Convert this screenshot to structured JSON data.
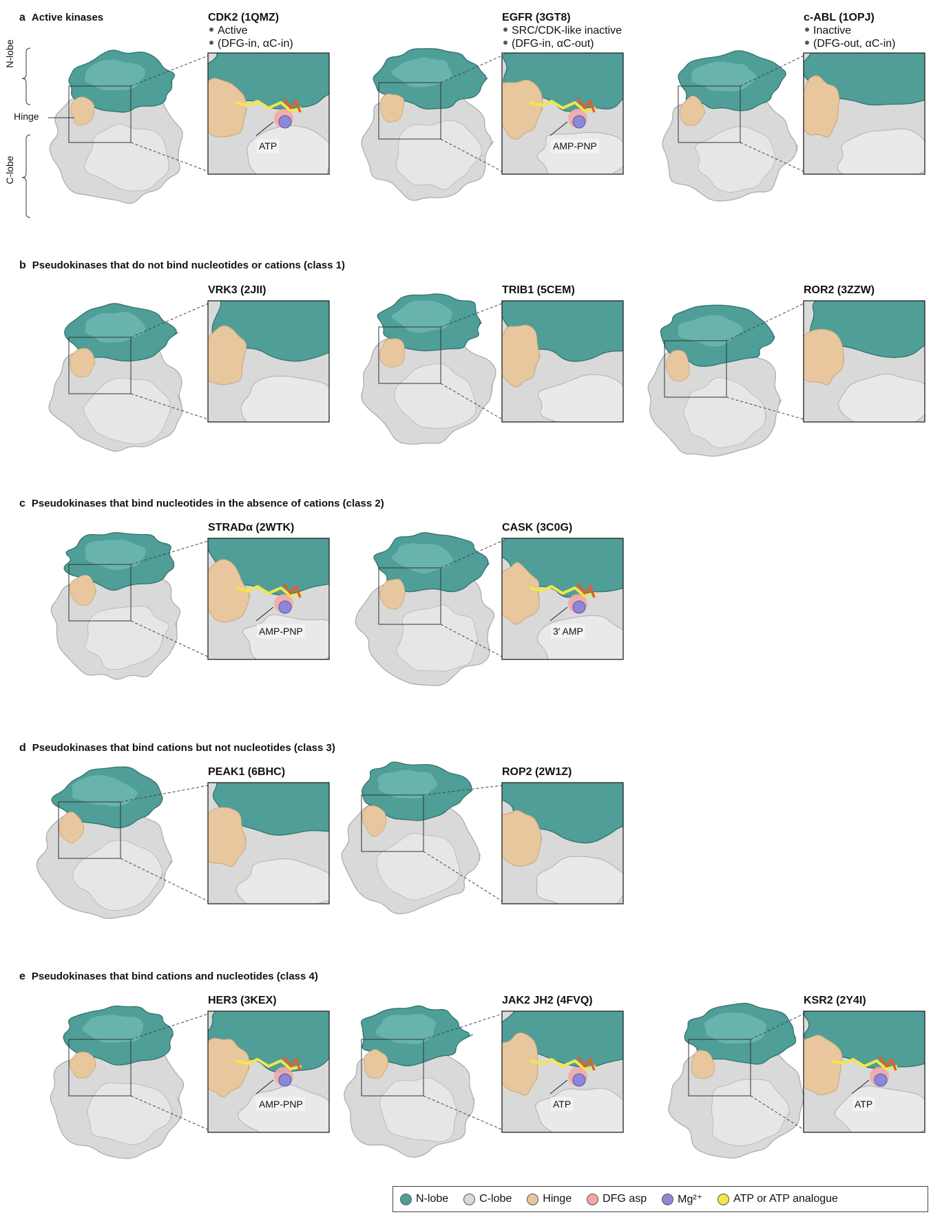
{
  "colors": {
    "n_lobe": "#4f9e98",
    "c_lobe": "#d9d9d9",
    "hinge": "#e8c79e",
    "dfg_asp": "#f2a7a7",
    "mg": "#8c87d6",
    "atp": "#f2e64a"
  },
  "side_labels": {
    "n_lobe": "N-lobe",
    "hinge": "Hinge",
    "c_lobe": "C-lobe"
  },
  "sections": [
    {
      "letter": "a",
      "title": "Active kinases",
      "kinases": [
        {
          "title": "CDK2 (1QMZ)",
          "lines": [
            "Active",
            "(DFG-in, αC-in)"
          ],
          "ligand": "ATP"
        },
        {
          "title": "EGFR (3GT8)",
          "lines": [
            "SRC/CDK-like inactive",
            "(DFG-in, αC-out)"
          ],
          "ligand": "AMP-PNP"
        },
        {
          "title": "c-ABL (1OPJ)",
          "lines": [
            "Inactive",
            "(DFG-out, αC-in)"
          ],
          "ligand": ""
        }
      ]
    },
    {
      "letter": "b",
      "title": "Pseudokinases that do not bind nucleotides or cations (class 1)",
      "kinases": [
        {
          "title": "VRK3 (2JII)",
          "lines": [],
          "ligand": ""
        },
        {
          "title": "TRIB1 (5CEM)",
          "lines": [],
          "ligand": ""
        },
        {
          "title": "ROR2 (3ZZW)",
          "lines": [],
          "ligand": ""
        }
      ]
    },
    {
      "letter": "c",
      "title": "Pseudokinases that bind nucleotides in the absence of cations (class 2)",
      "kinases": [
        {
          "title": "STRADα (2WTK)",
          "lines": [],
          "ligand": "AMP-PNP"
        },
        {
          "title": "CASK (3C0G)",
          "lines": [],
          "ligand": "3′ AMP"
        }
      ]
    },
    {
      "letter": "d",
      "title": "Pseudokinases that bind cations but not nucleotides (class 3)",
      "kinases": [
        {
          "title": "PEAK1 (6BHC)",
          "lines": [],
          "ligand": ""
        },
        {
          "title": "ROP2 (2W1Z)",
          "lines": [],
          "ligand": ""
        }
      ]
    },
    {
      "letter": "e",
      "title": "Pseudokinases that bind cations and nucleotides (class 4)",
      "kinases": [
        {
          "title": "HER3 (3KEX)",
          "lines": [],
          "ligand": "AMP-PNP"
        },
        {
          "title": "JAK2 JH2 (4FVQ)",
          "lines": [],
          "ligand": "ATP"
        },
        {
          "title": "KSR2 (2Y4I)",
          "lines": [],
          "ligand": "ATP"
        }
      ]
    }
  ],
  "legend": [
    {
      "label": "N-lobe",
      "color": "#4f9e98"
    },
    {
      "label": "C-lobe",
      "color": "#d9d9d9"
    },
    {
      "label": "Hinge",
      "color": "#e8c79e"
    },
    {
      "label": "DFG asp",
      "color": "#f2a7a7"
    },
    {
      "label": "Mg²⁺",
      "color": "#8c87d6"
    },
    {
      "label": "ATP or ATP analogue",
      "color": "#f2e64a"
    }
  ]
}
